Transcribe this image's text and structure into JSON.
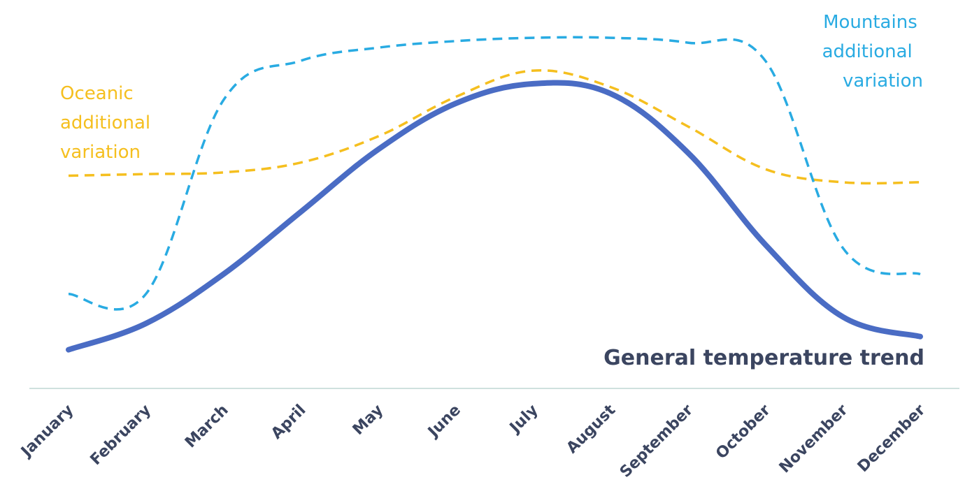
{
  "chart_data": {
    "type": "line",
    "title": "",
    "xlabel": "",
    "ylabel": "",
    "categories": [
      "January",
      "February",
      "March",
      "April",
      "May",
      "June",
      "July",
      "August",
      "September",
      "October",
      "November",
      "December"
    ],
    "ylim": [
      0,
      10
    ],
    "grid": false,
    "series": [
      {
        "name": "General temperature trend",
        "color": "#4a6cc4",
        "style": "solid",
        "values": [
          0.2,
          1.0,
          2.5,
          4.4,
          6.3,
          7.7,
          8.3,
          8.0,
          6.2,
          3.4,
          1.2,
          0.6
        ]
      },
      {
        "name": "Oceanic additional variation",
        "color": "#f5bf1f",
        "style": "dashed",
        "values": [
          5.5,
          5.55,
          5.6,
          5.9,
          6.7,
          7.9,
          8.7,
          8.2,
          7.0,
          5.7,
          5.3,
          5.3
        ]
      },
      {
        "name": "Mountains additional variation",
        "color": "#29abe2",
        "style": "dashed",
        "values": [
          1.9,
          1.9,
          7.8,
          9.0,
          9.4,
          9.6,
          9.7,
          9.7,
          9.55,
          9.0,
          3.3,
          2.5
        ]
      }
    ],
    "labels": {
      "main": "General temperature trend",
      "oceanic": [
        "Oceanic",
        "additional",
        "variation"
      ],
      "mountains": [
        "Mountains",
        "additional",
        "variation"
      ]
    }
  }
}
